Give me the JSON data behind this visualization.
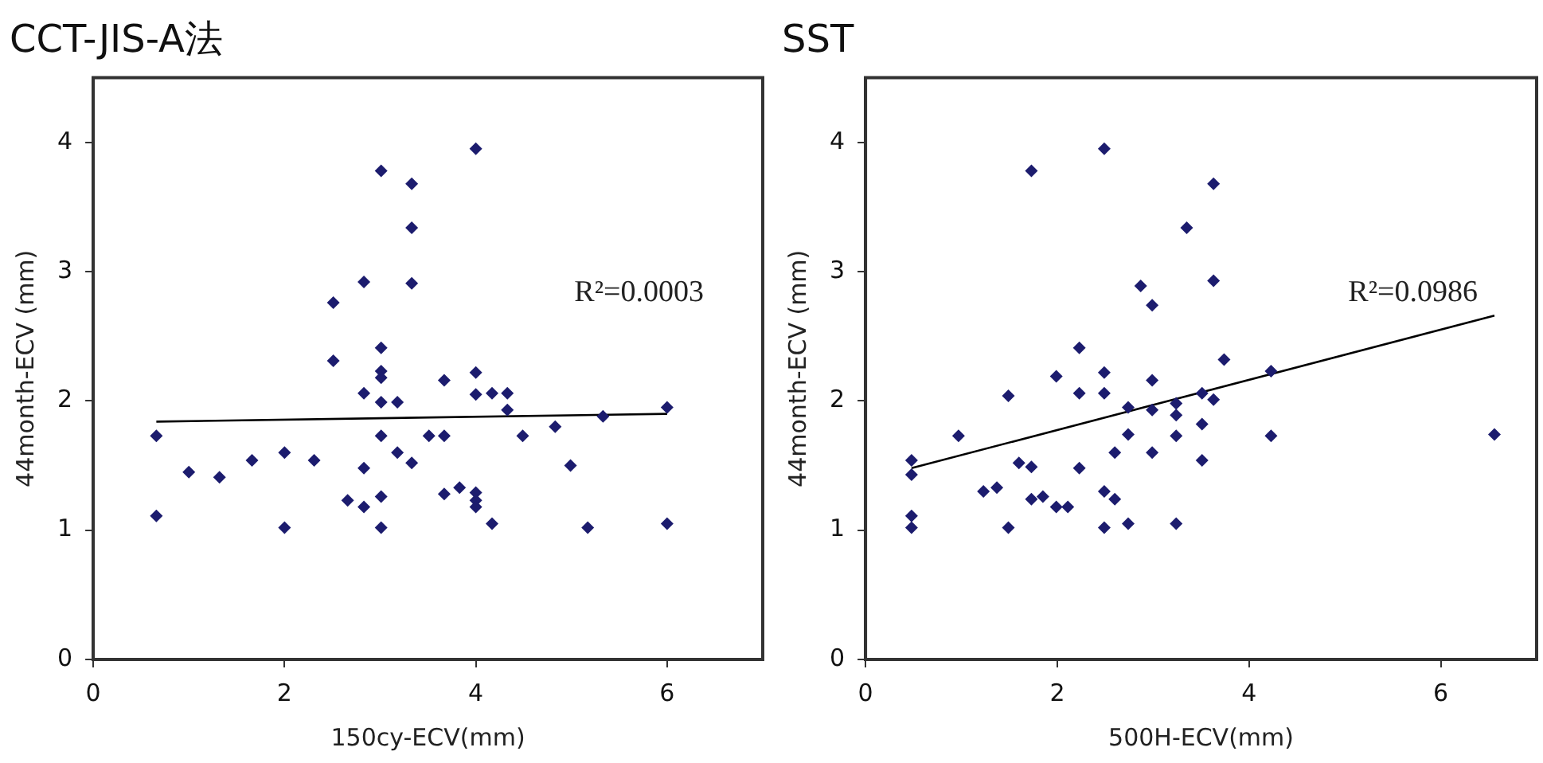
{
  "chart_data": [
    {
      "type": "scatter",
      "title": "CCT-JIS-A法",
      "xlabel": "150cy-ECV(mm)",
      "ylabel": "44month-ECV (mm)",
      "xlim": [
        0,
        7
      ],
      "ylim": [
        0,
        4.5
      ],
      "xticks": [
        0,
        2,
        4,
        6
      ],
      "yticks": [
        0,
        1,
        2,
        3,
        4
      ],
      "grid": false,
      "legend": false,
      "annotations": [
        "R²=0.0003"
      ],
      "series": [
        {
          "type": "scatter",
          "marker": "diamond",
          "color": "#1c1c6e",
          "x": [
            0.66,
            0.66,
            1.0,
            1.32,
            1.66,
            2.0,
            2.0,
            2.31,
            2.51,
            2.51,
            2.66,
            2.83,
            2.83,
            2.83,
            2.83,
            3.01,
            3.01,
            3.01,
            3.01,
            3.01,
            3.01,
            3.01,
            3.01,
            3.18,
            3.18,
            3.33,
            3.33,
            3.33,
            3.33,
            3.51,
            3.67,
            3.67,
            3.67,
            3.83,
            4.0,
            4.0,
            4.0,
            4.0,
            4.0,
            4.0,
            4.17,
            4.17,
            4.33,
            4.33,
            4.49,
            4.83,
            4.99,
            5.17,
            5.33,
            6.0,
            6.0
          ],
          "values": [
            1.73,
            1.11,
            1.45,
            1.41,
            1.54,
            1.6,
            1.02,
            1.54,
            2.76,
            2.31,
            1.23,
            2.92,
            2.06,
            1.48,
            1.18,
            3.78,
            2.41,
            2.23,
            2.18,
            1.99,
            1.73,
            1.26,
            1.02,
            1.99,
            1.6,
            3.68,
            3.34,
            2.91,
            1.52,
            1.73,
            2.16,
            1.73,
            1.28,
            1.33,
            3.95,
            2.22,
            2.05,
            1.29,
            1.23,
            1.18,
            2.06,
            1.05,
            2.06,
            1.93,
            1.73,
            1.8,
            1.5,
            1.02,
            1.88,
            1.95,
            1.05
          ]
        },
        {
          "type": "line",
          "color": "#000000",
          "x": [
            0.66,
            6.0
          ],
          "values": [
            1.84,
            1.9
          ]
        }
      ]
    },
    {
      "type": "scatter",
      "title": "SST",
      "xlabel": "500H-ECV(mm)",
      "ylabel": "44month-ECV (mm)",
      "xlim": [
        0,
        7
      ],
      "ylim": [
        0,
        4.5
      ],
      "xticks": [
        0,
        2,
        4,
        6
      ],
      "yticks": [
        0,
        1,
        2,
        3,
        4
      ],
      "grid": false,
      "legend": false,
      "annotations": [
        "R²=0.0986"
      ],
      "series": [
        {
          "type": "scatter",
          "marker": "diamond",
          "color": "#1c1c6e",
          "x": [
            0.48,
            0.48,
            0.48,
            0.48,
            0.97,
            1.23,
            1.37,
            1.49,
            1.49,
            1.6,
            1.73,
            1.73,
            1.73,
            1.85,
            1.99,
            1.99,
            2.11,
            2.23,
            2.23,
            2.23,
            2.49,
            2.49,
            2.49,
            2.49,
            2.49,
            2.6,
            2.6,
            2.74,
            2.74,
            2.74,
            2.87,
            2.99,
            2.99,
            2.99,
            2.99,
            3.24,
            3.24,
            3.24,
            3.24,
            3.35,
            3.51,
            3.51,
            3.51,
            3.63,
            3.63,
            3.63,
            3.74,
            4.23,
            4.23,
            6.56
          ],
          "values": [
            1.54,
            1.43,
            1.11,
            1.02,
            1.73,
            1.3,
            1.33,
            2.04,
            1.02,
            1.52,
            3.78,
            1.49,
            1.24,
            1.26,
            2.19,
            1.18,
            1.18,
            2.41,
            2.06,
            1.48,
            3.95,
            2.22,
            2.06,
            1.3,
            1.02,
            1.6,
            1.24,
            1.95,
            1.74,
            1.05,
            2.89,
            2.74,
            2.16,
            1.93,
            1.6,
            1.98,
            1.89,
            1.73,
            1.05,
            3.34,
            2.06,
            1.82,
            1.54,
            3.68,
            2.93,
            2.01,
            2.32,
            2.23,
            1.73,
            1.74
          ]
        },
        {
          "type": "line",
          "color": "#000000",
          "x": [
            0.48,
            6.56
          ],
          "values": [
            1.48,
            2.66
          ]
        }
      ]
    }
  ]
}
